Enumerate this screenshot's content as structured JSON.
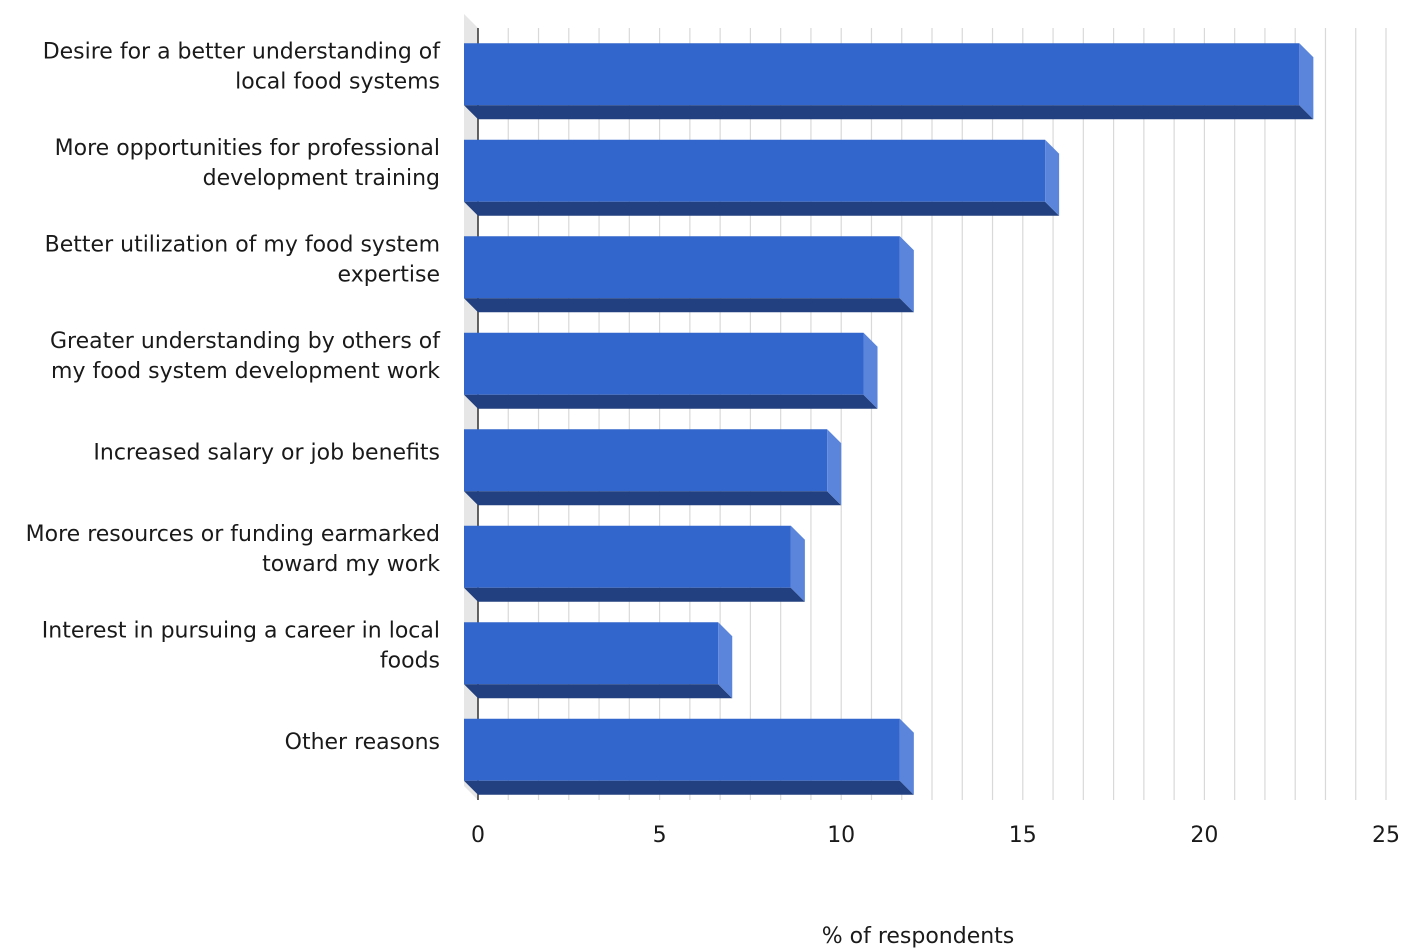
{
  "chart_data": {
    "type": "bar",
    "orientation": "horizontal",
    "style": "3d",
    "categories": [
      [
        "Desire for a better understanding of",
        "local food systems"
      ],
      [
        "More opportunities for professional",
        "development training"
      ],
      [
        "Better utilization of my food system",
        "expertise"
      ],
      [
        "Greater understanding by others of",
        "my food system development work"
      ],
      [
        "Increased salary or job benefits"
      ],
      [
        "More resources or funding earmarked",
        "toward my work"
      ],
      [
        "Interest in pursuing a career in local",
        "foods"
      ],
      [
        "Other reasons"
      ]
    ],
    "values": [
      23,
      16,
      12,
      11,
      10,
      9,
      7,
      12
    ],
    "xlabel": "% of respondents",
    "ylabel": "",
    "title": "",
    "xlim": [
      0,
      25
    ],
    "xticks": [
      0,
      5,
      10,
      15,
      20,
      25
    ],
    "minor_tick_step": 0.833,
    "grid": true,
    "legend": "none",
    "colors": {
      "bar_front": "#3366cc",
      "bar_bottom": "#22407f",
      "bar_side": "#5a85db",
      "grid": "#d9d9d9",
      "wall": "#e6e6e6",
      "axis": "#333333"
    }
  }
}
